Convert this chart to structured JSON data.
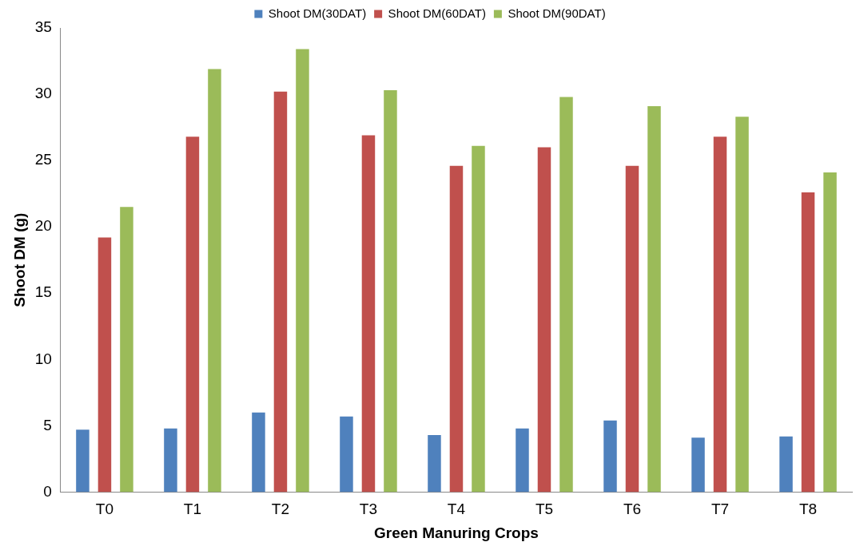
{
  "chart_data": {
    "type": "bar",
    "xlabel": "Green Manuring Crops",
    "ylabel": "Shoot DM (g)",
    "categories": [
      "T0",
      "T1",
      "T2",
      "T3",
      "T4",
      "T5",
      "T6",
      "T7",
      "T8"
    ],
    "series": [
      {
        "name": "Shoot DM(30DAT)",
        "color": "#4f81bd",
        "values": [
          4.7,
          4.8,
          6.0,
          5.7,
          4.3,
          4.8,
          5.4,
          4.1,
          4.2
        ]
      },
      {
        "name": "Shoot DM(60DAT)",
        "color": "#c0504d",
        "values": [
          19.2,
          26.8,
          30.2,
          26.9,
          24.6,
          26.0,
          24.6,
          26.8,
          22.6
        ]
      },
      {
        "name": "Shoot DM(90DAT)",
        "color": "#9bbb59",
        "values": [
          21.5,
          31.9,
          33.4,
          30.3,
          26.1,
          29.8,
          29.1,
          28.3,
          24.1
        ]
      }
    ],
    "ylim": [
      0,
      35
    ],
    "yticks": [
      0,
      5,
      10,
      15,
      20,
      25,
      30,
      35
    ],
    "grid": false,
    "legend": "top"
  }
}
